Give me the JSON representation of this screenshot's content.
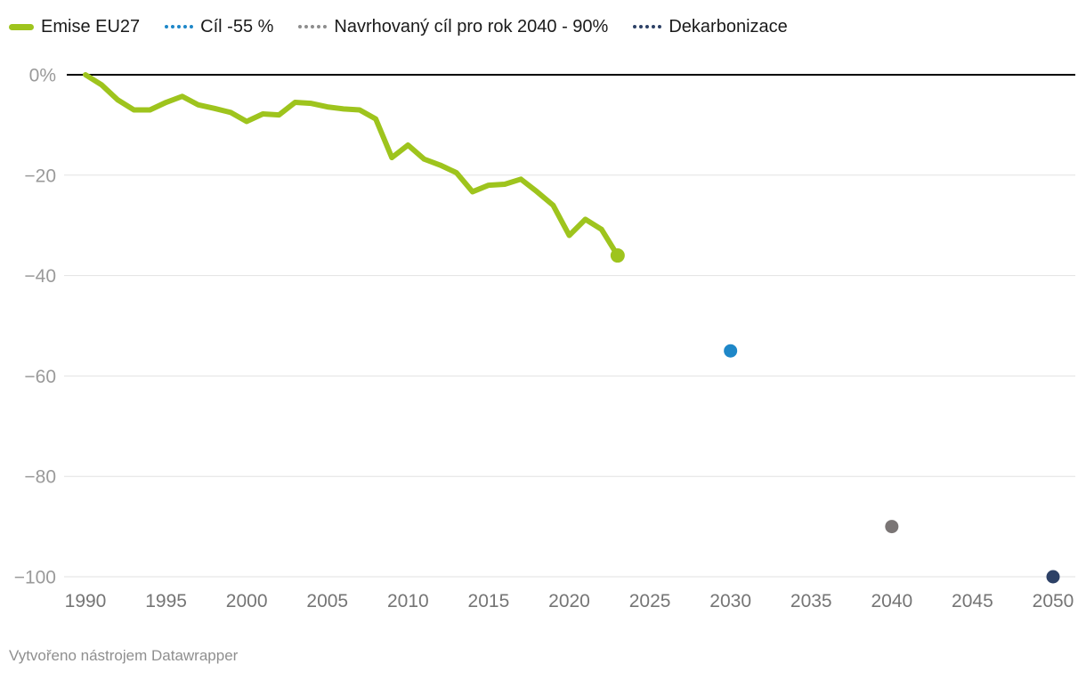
{
  "legend": {
    "items": [
      {
        "label": "Emise EU27",
        "color": "#9ec41d",
        "swatch": "line"
      },
      {
        "label": "Cíl -55 %",
        "color": "#1e87c8",
        "swatch": "dots"
      },
      {
        "label": "Navrhovaný cíl pro rok 2040 - 90%",
        "color": "#8d8d8d",
        "swatch": "dots"
      },
      {
        "label": "Dekarbonizace",
        "color": "#2d4166",
        "swatch": "dots"
      }
    ]
  },
  "chart_data": {
    "type": "line",
    "title": "",
    "xlabel": "",
    "ylabel": "",
    "xlim": [
      1990,
      2050
    ],
    "ylim": [
      -100,
      0
    ],
    "grid": "horizontal",
    "legend_position": "top",
    "x_ticks": [
      1990,
      1995,
      2000,
      2005,
      2010,
      2015,
      2020,
      2025,
      2030,
      2035,
      2040,
      2045,
      2050
    ],
    "y_ticks": [
      0,
      -20,
      -40,
      -60,
      -80,
      -100
    ],
    "y_tick_labels": [
      "0%",
      "−20",
      "−40",
      "−60",
      "−80",
      "−100"
    ],
    "series": [
      {
        "name": "Emise EU27",
        "type": "line",
        "color": "#9ec41d",
        "x": [
          1990,
          1991,
          1992,
          1993,
          1994,
          1995,
          1996,
          1997,
          1998,
          1999,
          2000,
          2001,
          2002,
          2003,
          2004,
          2005,
          2006,
          2007,
          2008,
          2009,
          2010,
          2011,
          2012,
          2013,
          2014,
          2015,
          2016,
          2017,
          2018,
          2019,
          2020,
          2021,
          2022,
          2023
        ],
        "values": [
          0,
          -2,
          -5,
          -7,
          -7,
          -5.5,
          -4.3,
          -6,
          -6.7,
          -7.5,
          -9.3,
          -7.8,
          -8,
          -5.5,
          -5.7,
          -6.4,
          -6.8,
          -7,
          -8.8,
          -16.5,
          -14,
          -16.8,
          -18,
          -19.5,
          -23.3,
          -22,
          -21.8,
          -20.8,
          -23.3,
          -26,
          -32,
          -28.8,
          -30.8,
          -36
        ]
      },
      {
        "name": "Cíl -55 %",
        "type": "point",
        "color": "#1e87c8",
        "x": [
          2030
        ],
        "values": [
          -55
        ]
      },
      {
        "name": "Navrhovaný cíl pro rok 2040 - 90%",
        "type": "point",
        "color": "#7a7575",
        "x": [
          2040
        ],
        "values": [
          -90
        ]
      },
      {
        "name": "Dekarbonizace",
        "type": "point",
        "color": "#2d4166",
        "x": [
          2050
        ],
        "values": [
          -100
        ]
      }
    ],
    "axis_colors": {
      "y_label": "#9a9a9a",
      "x_label": "#757575",
      "zero_line": "#000000",
      "grid_line": "#e2e2e2"
    }
  },
  "footer": {
    "credit": "Vytvořeno nástrojem Datawrapper"
  }
}
